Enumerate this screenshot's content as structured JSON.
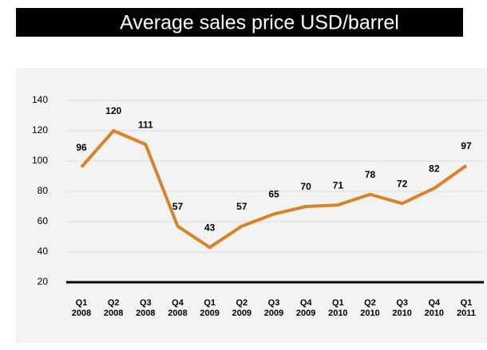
{
  "chart_data": {
    "type": "line",
    "title": "Average sales price USD/barrel",
    "categories": [
      [
        "Q1",
        "2008"
      ],
      [
        "Q2",
        "2008"
      ],
      [
        "Q3",
        "2008"
      ],
      [
        "Q4",
        "2008"
      ],
      [
        "Q1",
        "2009"
      ],
      [
        "Q2",
        "2009"
      ],
      [
        "Q3",
        "2009"
      ],
      [
        "Q4",
        "2009"
      ],
      [
        "Q1",
        "2010"
      ],
      [
        "Q2",
        "2010"
      ],
      [
        "Q3",
        "2010"
      ],
      [
        "Q4",
        "2010"
      ],
      [
        "Q1",
        "2011"
      ]
    ],
    "series": [
      {
        "name": "Average sales price",
        "color": "#d98326",
        "values": [
          96,
          120,
          111,
          57,
          43,
          57,
          65,
          70,
          71,
          78,
          72,
          82,
          97
        ]
      }
    ],
    "ylim": [
      20,
      140
    ],
    "yticks": [
      20,
      40,
      60,
      80,
      100,
      120,
      140
    ],
    "grid": true
  }
}
